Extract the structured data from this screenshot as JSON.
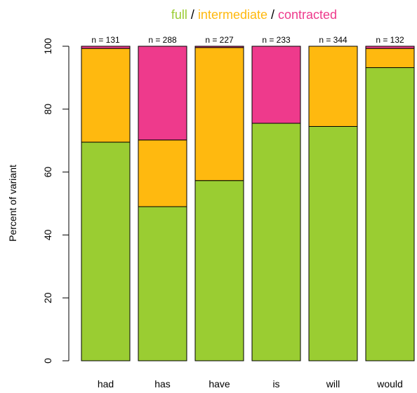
{
  "chart_data": {
    "type": "bar",
    "stacked": true,
    "categories": [
      "had",
      "has",
      "have",
      "is",
      "will",
      "would"
    ],
    "counts": [
      "n = 131",
      "n = 288",
      "n = 227",
      "n = 233",
      "n = 344",
      "n = 132"
    ],
    "series": [
      {
        "name": "full",
        "color": "#9acd32",
        "values": [
          69.5,
          49.0,
          57.3,
          75.5,
          74.5,
          93.2
        ]
      },
      {
        "name": "intermediate",
        "color": "#ffb90f",
        "values": [
          29.8,
          21.2,
          42.3,
          0.0,
          25.5,
          6.1
        ]
      },
      {
        "name": "contracted",
        "color": "#ee3a8c",
        "values": [
          0.7,
          29.8,
          0.4,
          24.5,
          0.0,
          0.7
        ]
      }
    ],
    "title_parts": [
      {
        "text": "full",
        "color": "#9acd32"
      },
      {
        "text": " / ",
        "color": "#000000"
      },
      {
        "text": "intermediate",
        "color": "#ffb90f"
      },
      {
        "text": " / ",
        "color": "#000000"
      },
      {
        "text": "contracted",
        "color": "#ee3a8c"
      }
    ],
    "ylabel": "Percent of variant",
    "ylim": [
      0,
      100
    ],
    "yticks": [
      "0",
      "20",
      "40",
      "60",
      "80",
      "100"
    ],
    "grid": false
  }
}
